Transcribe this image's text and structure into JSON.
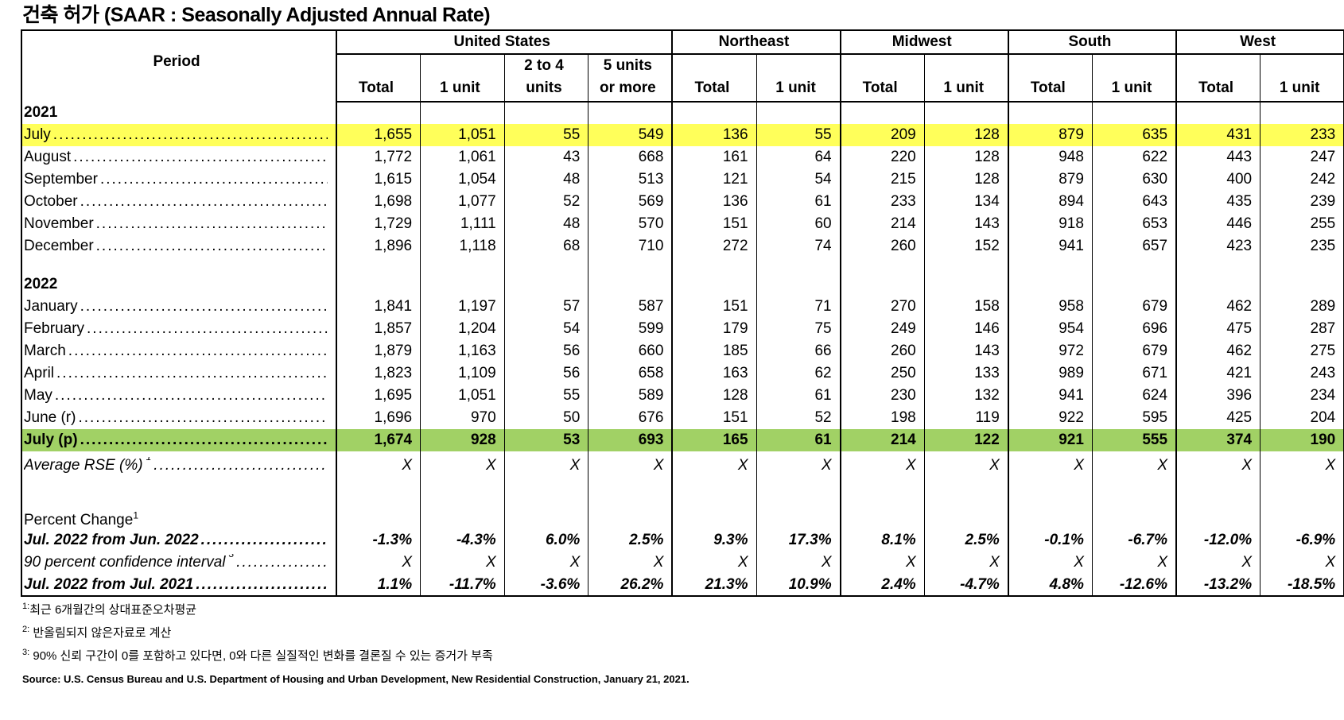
{
  "title": "건축 허가 (SAAR : Seasonally Adjusted Annual Rate)",
  "header": {
    "period": "Period",
    "groups": [
      {
        "label": "United States",
        "cols": [
          "Total",
          "1 unit",
          "2 to 4\nunits",
          "5 units\nor more"
        ]
      },
      {
        "label": "Northeast",
        "cols": [
          "Total",
          "1 unit"
        ]
      },
      {
        "label": "Midwest",
        "cols": [
          "Total",
          "1 unit"
        ]
      },
      {
        "label": "South",
        "cols": [
          "Total",
          "1 unit"
        ]
      },
      {
        "label": "West",
        "cols": [
          "Total",
          "1 unit"
        ]
      }
    ]
  },
  "rows": [
    {
      "type": "year",
      "label": "2021"
    },
    {
      "type": "data",
      "style": "yellow",
      "label": "July",
      "values": [
        "1,655",
        "1,051",
        "55",
        "549",
        "136",
        "55",
        "209",
        "128",
        "879",
        "635",
        "431",
        "233"
      ]
    },
    {
      "type": "data",
      "label": "August",
      "values": [
        "1,772",
        "1,061",
        "43",
        "668",
        "161",
        "64",
        "220",
        "128",
        "948",
        "622",
        "443",
        "247"
      ]
    },
    {
      "type": "data",
      "label": "September",
      "values": [
        "1,615",
        "1,054",
        "48",
        "513",
        "121",
        "54",
        "215",
        "128",
        "879",
        "630",
        "400",
        "242"
      ]
    },
    {
      "type": "data",
      "label": "October",
      "values": [
        "1,698",
        "1,077",
        "52",
        "569",
        "136",
        "61",
        "233",
        "134",
        "894",
        "643",
        "435",
        "239"
      ]
    },
    {
      "type": "data",
      "label": "November",
      "values": [
        "1,729",
        "1,111",
        "48",
        "570",
        "151",
        "60",
        "214",
        "143",
        "918",
        "653",
        "446",
        "255"
      ]
    },
    {
      "type": "data",
      "label": "December",
      "values": [
        "1,896",
        "1,118",
        "68",
        "710",
        "272",
        "74",
        "260",
        "152",
        "941",
        "657",
        "423",
        "235"
      ]
    },
    {
      "type": "blank"
    },
    {
      "type": "year",
      "label": "2022"
    },
    {
      "type": "data",
      "label": "January",
      "values": [
        "1,841",
        "1,197",
        "57",
        "587",
        "151",
        "71",
        "270",
        "158",
        "958",
        "679",
        "462",
        "289"
      ]
    },
    {
      "type": "data",
      "label": "February",
      "values": [
        "1,857",
        "1,204",
        "54",
        "599",
        "179",
        "75",
        "249",
        "146",
        "954",
        "696",
        "475",
        "287"
      ]
    },
    {
      "type": "data",
      "label": "March",
      "values": [
        "1,879",
        "1,163",
        "56",
        "660",
        "185",
        "66",
        "260",
        "143",
        "972",
        "679",
        "462",
        "275"
      ]
    },
    {
      "type": "data",
      "label": "April",
      "values": [
        "1,823",
        "1,109",
        "56",
        "658",
        "163",
        "62",
        "250",
        "133",
        "989",
        "671",
        "421",
        "243"
      ]
    },
    {
      "type": "data",
      "label": "May",
      "values": [
        "1,695",
        "1,051",
        "55",
        "589",
        "128",
        "61",
        "230",
        "132",
        "941",
        "624",
        "396",
        "234"
      ]
    },
    {
      "type": "data",
      "label": "June (r)",
      "values": [
        "1,696",
        "970",
        "50",
        "676",
        "151",
        "52",
        "198",
        "119",
        "922",
        "595",
        "425",
        "204"
      ]
    },
    {
      "type": "data",
      "style": "green",
      "label": "July (p)",
      "values": [
        "1,674",
        "928",
        "53",
        "693",
        "165",
        "61",
        "214",
        "122",
        "921",
        "555",
        "374",
        "190"
      ]
    },
    {
      "type": "data",
      "style": "ital indent rse",
      "label": "Average RSE (%)",
      "sup": "1",
      "values": [
        "X",
        "X",
        "X",
        "X",
        "X",
        "X",
        "X",
        "X",
        "X",
        "X",
        "X",
        "X"
      ]
    },
    {
      "type": "blank"
    },
    {
      "type": "section",
      "label": "Percent Change",
      "sup": "1"
    },
    {
      "type": "data",
      "style": "ital bold",
      "label": "Jul. 2022 from Jun. 2022",
      "values": [
        "-1.3%",
        "-4.3%",
        "6.0%",
        "2.5%",
        "9.3%",
        "17.3%",
        "8.1%",
        "2.5%",
        "-0.1%",
        "-6.7%",
        "-12.0%",
        "-6.9%"
      ]
    },
    {
      "type": "data",
      "style": "ital indent",
      "label": "90 percent confidence interval",
      "sup": "3",
      "values": [
        "X",
        "X",
        "X",
        "X",
        "X",
        "X",
        "X",
        "X",
        "X",
        "X",
        "X",
        "X"
      ]
    },
    {
      "type": "data",
      "style": "ital bold",
      "label": "Jul. 2022 from Jul. 2021",
      "values": [
        "1.1%",
        "-11.7%",
        "-3.6%",
        "26.2%",
        "21.3%",
        "10.9%",
        "2.4%",
        "-4.7%",
        "4.8%",
        "-12.6%",
        "-13.2%",
        "-18.5%"
      ]
    }
  ],
  "footnotes": [
    {
      "mark": "1:",
      "text": "최근 6개월간의 상대표준오차평균"
    },
    {
      "mark": "2:",
      "text": " 반올림되지 않은자료로 계산"
    },
    {
      "mark": "3:",
      "text": " 90% 신뢰 구간이 0를 포함하고 있다면, 0와 다른 실질적인 변화를 결론질 수 있는 증거가 부족"
    }
  ],
  "source": "Source: U.S. Census Bureau and U.S. Department of Housing and Urban Development, New Residential Construction, January 21, 2021.",
  "colors": {
    "highlight_first": "#ffff5a",
    "highlight_latest": "#a1d165"
  }
}
